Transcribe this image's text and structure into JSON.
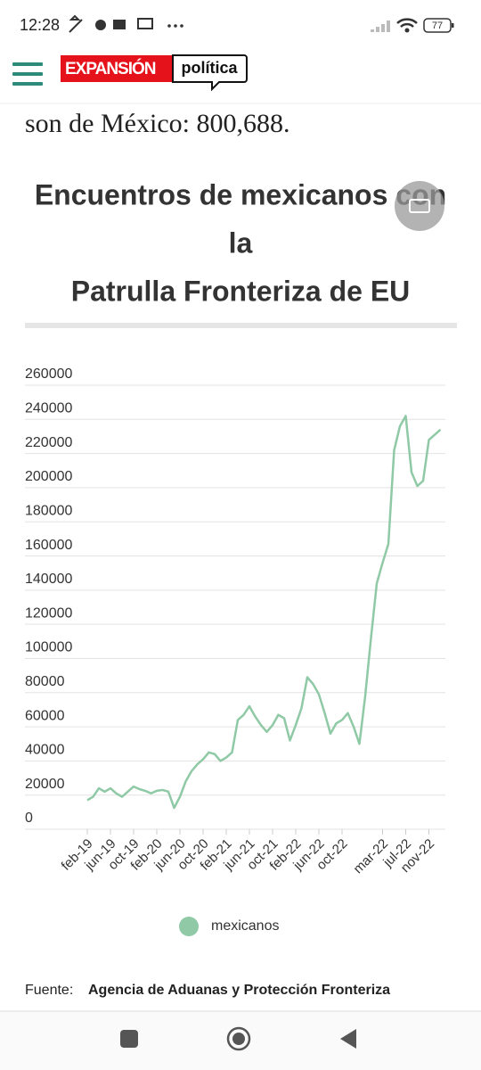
{
  "status_bar": {
    "time": "12:28",
    "battery": "77"
  },
  "header": {
    "logo_left": "EXPANSIÓN",
    "logo_right": "política"
  },
  "article": {
    "text": "son de México: 800,688."
  },
  "chart_data": {
    "type": "line",
    "title": [
      "Encuentros de mexicanos con",
      "la",
      "Patrulla Fronteriza de EU"
    ],
    "categories": [
      "feb-19",
      null,
      null,
      null,
      "jun-19",
      null,
      null,
      null,
      "oct-19",
      null,
      null,
      null,
      "feb-20",
      null,
      null,
      null,
      "jun-20",
      null,
      null,
      null,
      "oct-20",
      null,
      null,
      null,
      "feb-21",
      null,
      null,
      null,
      "jun-21",
      null,
      null,
      null,
      "oct-21",
      null,
      null,
      null,
      "feb-22",
      null,
      null,
      null,
      "jun-22",
      null,
      null,
      null,
      "oct-22",
      null,
      null,
      null,
      null,
      null,
      null,
      "mar-22",
      null,
      null,
      null,
      "jul-22",
      null,
      null,
      null,
      "nov-22",
      null,
      null
    ],
    "series": [
      {
        "name": "mexicanos",
        "color": "#8fc9a5",
        "values": [
          17000,
          19000,
          24000,
          22000,
          24000,
          21000,
          19000,
          22000,
          25000,
          23500,
          22500,
          21000,
          22500,
          23000,
          22000,
          12500,
          19000,
          28000,
          34000,
          38000,
          41000,
          45000,
          44000,
          40000,
          42000,
          45000,
          64000,
          67000,
          72000,
          66000,
          61000,
          57000,
          61000,
          67000,
          65000,
          52000,
          61000,
          71000,
          89000,
          85000,
          79000,
          68000,
          56000,
          62000,
          64000,
          68000,
          60000,
          50000,
          78000,
          112000,
          144000,
          156000,
          167000,
          222000,
          236000,
          242000,
          209000,
          201000,
          204000,
          228000,
          231000,
          234000
        ]
      }
    ],
    "ylim": [
      0,
      260000
    ],
    "yticks": [
      0,
      20000,
      40000,
      60000,
      80000,
      100000,
      120000,
      140000,
      160000,
      180000,
      200000,
      220000,
      240000,
      260000
    ],
    "grid": true,
    "legend": "bottom"
  },
  "source": {
    "label": "Fuente:",
    "text": "Agencia de Aduanas y Protección Fronteriza"
  }
}
